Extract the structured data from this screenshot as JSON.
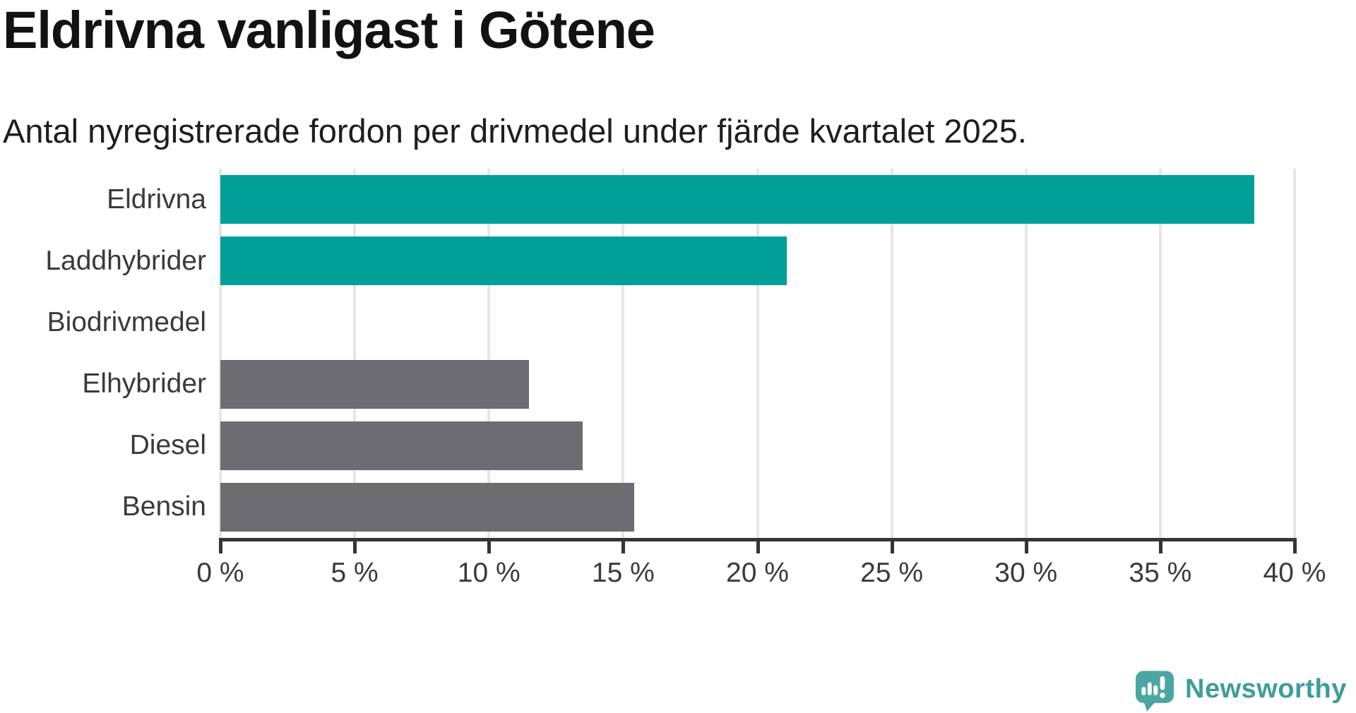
{
  "chart_data": {
    "type": "bar",
    "orientation": "horizontal",
    "title": "Eldrivna vanligast i Götene",
    "subtitle": "Antal nyregistrerade fordon per drivmedel under fjärde kvartalet 2025.",
    "categories": [
      "Eldrivna",
      "Laddhybrider",
      "Biodrivmedel",
      "Elhybrider",
      "Diesel",
      "Bensin"
    ],
    "values": [
      38.5,
      21.1,
      0,
      11.5,
      13.5,
      15.4
    ],
    "unit": "%",
    "xlabel": "",
    "ylabel": "",
    "xlim": [
      0,
      40
    ],
    "xticks": [
      0,
      5,
      10,
      15,
      20,
      25,
      30,
      35,
      40
    ],
    "xtick_labels": [
      "0 %",
      "5 %",
      "10 %",
      "15 %",
      "20 %",
      "25 %",
      "30 %",
      "35 %",
      "40 %"
    ],
    "grid": true,
    "legend": false,
    "colors": {
      "highlight": "#00a099",
      "muted": "#6c6c71",
      "gridline": "#e6e6e6",
      "axis": "#333538",
      "label_text": "#3a3a3a"
    },
    "bar_colors": [
      "#00a099",
      "#00a099",
      "#6c6c71",
      "#6c6c71",
      "#6c6c71",
      "#6c6c71"
    ]
  },
  "branding": {
    "logo_text": "Newsworthy",
    "text_color": "#3f9d99",
    "icon_color": "#4ba6a2",
    "icon_glyph_color": "#ffffff"
  }
}
